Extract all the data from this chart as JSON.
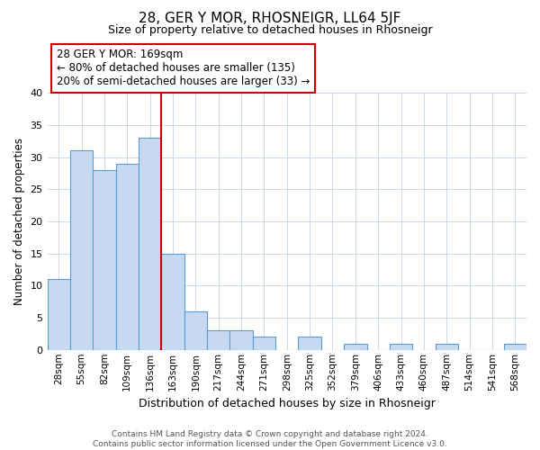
{
  "title": "28, GER Y MOR, RHOSNEIGR, LL64 5JF",
  "subtitle": "Size of property relative to detached houses in Rhosneigr",
  "xlabel": "Distribution of detached houses by size in Rhosneigr",
  "ylabel": "Number of detached properties",
  "bin_labels": [
    "28sqm",
    "55sqm",
    "82sqm",
    "109sqm",
    "136sqm",
    "163sqm",
    "190sqm",
    "217sqm",
    "244sqm",
    "271sqm",
    "298sqm",
    "325sqm",
    "352sqm",
    "379sqm",
    "406sqm",
    "433sqm",
    "460sqm",
    "487sqm",
    "514sqm",
    "541sqm",
    "568sqm"
  ],
  "bar_values": [
    11,
    31,
    28,
    29,
    33,
    15,
    6,
    3,
    3,
    2,
    0,
    2,
    0,
    1,
    0,
    1,
    0,
    1,
    0,
    0,
    1
  ],
  "bar_color": "#c6d9f0",
  "bar_edge_color": "#5b9bd5",
  "vline_color": "#cc0000",
  "vline_bin_index": 5,
  "ylim": [
    0,
    40
  ],
  "yticks": [
    0,
    5,
    10,
    15,
    20,
    25,
    30,
    35,
    40
  ],
  "annotation_text_line1": "28 GER Y MOR: 169sqm",
  "annotation_text_line2": "← 80% of detached houses are smaller (135)",
  "annotation_text_line3": "20% of semi-detached houses are larger (33) →",
  "footer_line1": "Contains HM Land Registry data © Crown copyright and database right 2024.",
  "footer_line2": "Contains public sector information licensed under the Open Government Licence v3.0.",
  "bg_color": "#ffffff",
  "grid_color": "#c8d8e8"
}
